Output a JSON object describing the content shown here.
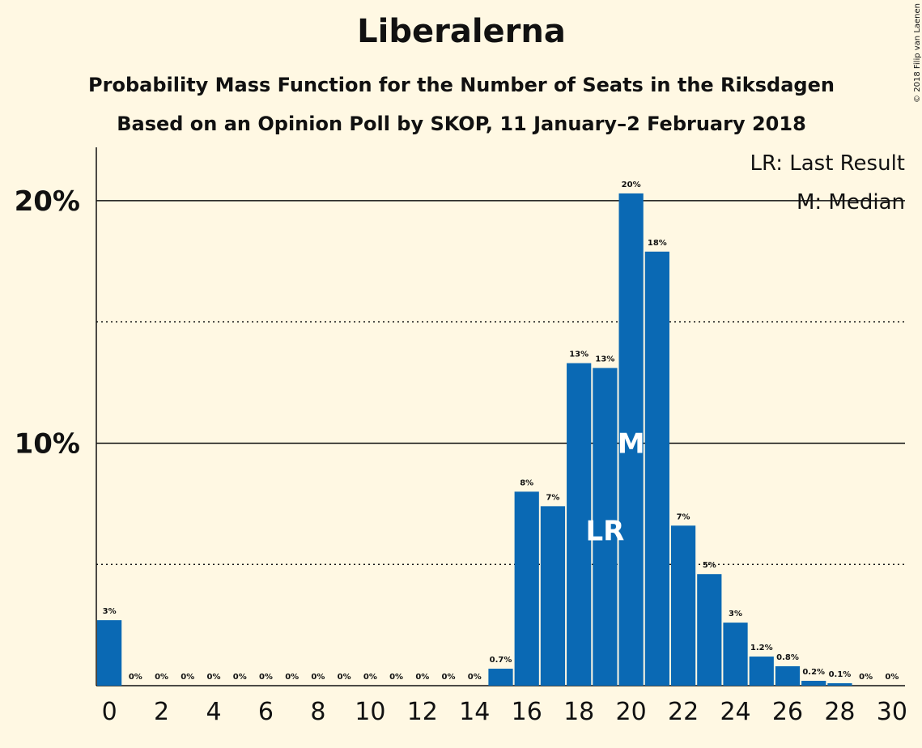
{
  "chart_data": {
    "type": "bar",
    "title": "Liberalerna",
    "subtitle": "Probability Mass Function for the Number of Seats in the Riksdagen",
    "subtitle2": "Based on an Opinion Poll by SKOP, 11 January–2 February 2018",
    "credit": "© 2018 Filip van Laenen",
    "categories": [
      0,
      null,
      2,
      null,
      4,
      null,
      6,
      null,
      8,
      null,
      10,
      null,
      12,
      null,
      14,
      null,
      16,
      null,
      18,
      null,
      20,
      null,
      22,
      null,
      24,
      null,
      26,
      null,
      28,
      null,
      30
    ],
    "values": [
      2.7,
      0,
      0,
      0,
      0,
      0,
      0,
      0,
      0,
      0,
      0,
      0,
      0,
      0,
      0,
      0.7,
      8.0,
      7.4,
      13.3,
      13.1,
      20.3,
      17.9,
      6.6,
      4.6,
      2.6,
      1.2,
      0.8,
      0.2,
      0.1,
      0,
      0
    ],
    "value_labels": [
      "3%",
      "0%",
      "0%",
      "0%",
      "0%",
      "0%",
      "0%",
      "0%",
      "0%",
      "0%",
      "0%",
      "0%",
      "0%",
      "0%",
      "0%",
      "0.7%",
      "8%",
      "7%",
      "13%",
      "13%",
      "20%",
      "18%",
      "7%",
      "5%",
      "3%",
      "1.2%",
      "0.8%",
      "0.2%",
      "0.1%",
      "0%",
      "0%"
    ],
    "color": "#0a69b4",
    "ylim": [
      0,
      22.2
    ],
    "yticks": [
      {
        "value": 10,
        "label": "10%"
      },
      {
        "value": 20,
        "label": "20%"
      }
    ],
    "minor_yticks": [
      5,
      15
    ],
    "grid": true,
    "annotations": [
      {
        "label": "LR",
        "category": 19,
        "y": 6.4
      },
      {
        "label": "M",
        "category": 20,
        "y": 10
      }
    ],
    "legend": [
      "LR: Last Result",
      "M: Median"
    ]
  }
}
